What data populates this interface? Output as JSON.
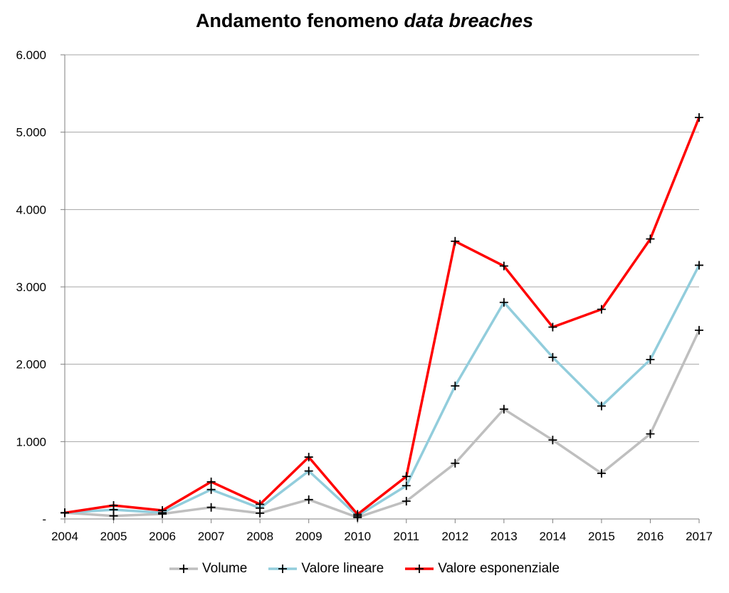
{
  "chart_data": {
    "type": "line",
    "title_plain": "Andamento fenomeno ",
    "title_italic": "data breaches",
    "x": [
      "2004",
      "2005",
      "2006",
      "2007",
      "2008",
      "2009",
      "2010",
      "2011",
      "2012",
      "2013",
      "2014",
      "2015",
      "2016",
      "2017"
    ],
    "ylim": [
      0,
      6000
    ],
    "yticks": [
      0,
      1000,
      2000,
      3000,
      4000,
      5000,
      6000
    ],
    "ytick_labels": [
      "-",
      "1.000",
      "2.000",
      "3.000",
      "4.000",
      "5.000",
      "6.000"
    ],
    "grid": true,
    "legend_position": "bottom",
    "marker": "plus",
    "series": [
      {
        "name": "Volume",
        "color": "#bfbfbf",
        "values": [
          80,
          40,
          65,
          150,
          75,
          250,
          20,
          230,
          720,
          1420,
          1020,
          590,
          1100,
          2440
        ]
      },
      {
        "name": "Valore lineare",
        "color": "#92cddc",
        "values": [
          80,
          120,
          80,
          380,
          140,
          620,
          40,
          430,
          1720,
          2800,
          2090,
          1460,
          2060,
          3280
        ]
      },
      {
        "name": "Valore esponenziale",
        "color": "#ff0000",
        "values": [
          80,
          175,
          110,
          480,
          190,
          800,
          60,
          550,
          3590,
          3270,
          2480,
          2710,
          3620,
          5190
        ]
      }
    ]
  }
}
